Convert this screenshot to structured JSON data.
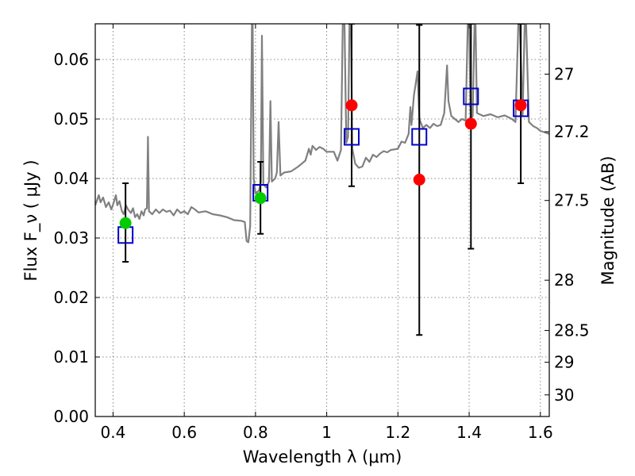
{
  "chart_data": {
    "type": "scatter",
    "title": "",
    "xlabel": "Wavelength  λ (μm)",
    "ylabel": "Flux  F_ν  ( μJy )",
    "ylabel_right": "Magnitude (AB)",
    "xlim": [
      0.35,
      1.625
    ],
    "ylim": [
      0.0,
      0.066
    ],
    "grid": true,
    "grid_style": "dotted",
    "legend": "none",
    "x_ticks": [
      0.4,
      0.6,
      0.8,
      1.0,
      1.2,
      1.4,
      1.6
    ],
    "x_tick_labels": [
      "0.4",
      "0.6",
      "0.8",
      "1",
      "1.2",
      "1.4",
      "1.6"
    ],
    "y_ticks": [
      0.0,
      0.01,
      0.02,
      0.03,
      0.04,
      0.05,
      0.06
    ],
    "y_tick_labels": [
      "0.00",
      "0.01",
      "0.02",
      "0.03",
      "0.04",
      "0.05",
      "0.06"
    ],
    "right_ticks": [
      {
        "mag": 27.0,
        "label": "27"
      },
      {
        "mag": 27.2,
        "label": "27.2"
      },
      {
        "mag": 27.5,
        "label": "27.5"
      },
      {
        "mag": 28.0,
        "label": "28"
      },
      {
        "mag": 28.5,
        "label": "28.5"
      },
      {
        "mag": 29.0,
        "label": "29"
      },
      {
        "mag": 30.0,
        "label": "30"
      }
    ],
    "colors": {
      "spectrum": "#808080",
      "model_squares": "#0000cc",
      "observed_optical": "#00cc00",
      "observed_ir": "#ff0000",
      "error_bars": "#000000",
      "grid": "#888888"
    },
    "series": [
      {
        "kind": "line",
        "points": [
          [
            0.35,
            0.0355
          ],
          [
            0.36,
            0.0372
          ],
          [
            0.365,
            0.036
          ],
          [
            0.372,
            0.0368
          ],
          [
            0.38,
            0.0352
          ],
          [
            0.388,
            0.036
          ],
          [
            0.395,
            0.0348
          ],
          [
            0.4,
            0.0356
          ],
          [
            0.408,
            0.0372
          ],
          [
            0.412,
            0.0355
          ],
          [
            0.418,
            0.0362
          ],
          [
            0.425,
            0.0345
          ],
          [
            0.43,
            0.034
          ],
          [
            0.436,
            0.0355
          ],
          [
            0.442,
            0.0348
          ],
          [
            0.45,
            0.0342
          ],
          [
            0.456,
            0.035
          ],
          [
            0.462,
            0.0335
          ],
          [
            0.468,
            0.034
          ],
          [
            0.474,
            0.0332
          ],
          [
            0.48,
            0.0345
          ],
          [
            0.486,
            0.0338
          ],
          [
            0.49,
            0.0348
          ],
          [
            0.495,
            0.035
          ],
          [
            0.498,
            0.047
          ],
          [
            0.501,
            0.0345
          ],
          [
            0.51,
            0.034
          ],
          [
            0.52,
            0.0348
          ],
          [
            0.53,
            0.0342
          ],
          [
            0.54,
            0.0348
          ],
          [
            0.55,
            0.0344
          ],
          [
            0.56,
            0.0346
          ],
          [
            0.57,
            0.0338
          ],
          [
            0.58,
            0.0348
          ],
          [
            0.59,
            0.0342
          ],
          [
            0.6,
            0.0345
          ],
          [
            0.61,
            0.034
          ],
          [
            0.62,
            0.0352
          ],
          [
            0.63,
            0.0348
          ],
          [
            0.64,
            0.0343
          ],
          [
            0.66,
            0.0345
          ],
          [
            0.68,
            0.034
          ],
          [
            0.7,
            0.0338
          ],
          [
            0.72,
            0.0335
          ],
          [
            0.74,
            0.033
          ],
          [
            0.76,
            0.0329
          ],
          [
            0.77,
            0.0327
          ],
          [
            0.775,
            0.0295
          ],
          [
            0.78,
            0.0293
          ],
          [
            0.785,
            0.032
          ],
          [
            0.79,
            0.066
          ],
          [
            0.792,
            0.066
          ],
          [
            0.795,
            0.04
          ],
          [
            0.8,
            0.0375
          ],
          [
            0.81,
            0.038
          ],
          [
            0.815,
            0.0395
          ],
          [
            0.818,
            0.064
          ],
          [
            0.822,
            0.039
          ],
          [
            0.83,
            0.0385
          ],
          [
            0.838,
            0.0395
          ],
          [
            0.842,
            0.053
          ],
          [
            0.846,
            0.0395
          ],
          [
            0.855,
            0.04
          ],
          [
            0.86,
            0.041
          ],
          [
            0.865,
            0.0495
          ],
          [
            0.87,
            0.0405
          ],
          [
            0.88,
            0.041
          ],
          [
            0.9,
            0.0412
          ],
          [
            0.92,
            0.042
          ],
          [
            0.94,
            0.043
          ],
          [
            0.95,
            0.045
          ],
          [
            0.955,
            0.044
          ],
          [
            0.96,
            0.0455
          ],
          [
            0.97,
            0.0448
          ],
          [
            0.98,
            0.0453
          ],
          [
            0.99,
            0.045
          ],
          [
            1.0,
            0.0445
          ],
          [
            1.02,
            0.0445
          ],
          [
            1.03,
            0.043
          ],
          [
            1.04,
            0.0448
          ],
          [
            1.045,
            0.066
          ],
          [
            1.05,
            0.066
          ],
          [
            1.055,
            0.046
          ],
          [
            1.06,
            0.047
          ],
          [
            1.064,
            0.066
          ],
          [
            1.068,
            0.066
          ],
          [
            1.072,
            0.045
          ],
          [
            1.08,
            0.0425
          ],
          [
            1.09,
            0.0418
          ],
          [
            1.1,
            0.042
          ],
          [
            1.11,
            0.0435
          ],
          [
            1.12,
            0.0428
          ],
          [
            1.13,
            0.044
          ],
          [
            1.14,
            0.0436
          ],
          [
            1.15,
            0.0442
          ],
          [
            1.16,
            0.0446
          ],
          [
            1.17,
            0.0444
          ],
          [
            1.18,
            0.0448
          ],
          [
            1.19,
            0.0449
          ],
          [
            1.2,
            0.045
          ],
          [
            1.21,
            0.0462
          ],
          [
            1.22,
            0.046
          ],
          [
            1.23,
            0.0475
          ],
          [
            1.235,
            0.052
          ],
          [
            1.238,
            0.049
          ],
          [
            1.245,
            0.054
          ],
          [
            1.25,
            0.056
          ],
          [
            1.255,
            0.058
          ],
          [
            1.26,
            0.05
          ],
          [
            1.27,
            0.0485
          ],
          [
            1.28,
            0.049
          ],
          [
            1.29,
            0.0485
          ],
          [
            1.3,
            0.0492
          ],
          [
            1.31,
            0.0488
          ],
          [
            1.32,
            0.049
          ],
          [
            1.33,
            0.051
          ],
          [
            1.338,
            0.059
          ],
          [
            1.342,
            0.053
          ],
          [
            1.35,
            0.0505
          ],
          [
            1.36,
            0.05
          ],
          [
            1.37,
            0.0495
          ],
          [
            1.38,
            0.05
          ],
          [
            1.39,
            0.0497
          ],
          [
            1.396,
            0.066
          ],
          [
            1.4,
            0.066
          ],
          [
            1.404,
            0.05
          ],
          [
            1.41,
            0.0505
          ],
          [
            1.415,
            0.066
          ],
          [
            1.418,
            0.066
          ],
          [
            1.422,
            0.051
          ],
          [
            1.44,
            0.0505
          ],
          [
            1.46,
            0.0508
          ],
          [
            1.48,
            0.0503
          ],
          [
            1.5,
            0.0506
          ],
          [
            1.52,
            0.05
          ],
          [
            1.53,
            0.0495
          ],
          [
            1.538,
            0.066
          ],
          [
            1.542,
            0.066
          ],
          [
            1.55,
            0.0505
          ],
          [
            1.556,
            0.066
          ],
          [
            1.56,
            0.066
          ],
          [
            1.568,
            0.0495
          ],
          [
            1.58,
            0.0488
          ],
          [
            1.59,
            0.0485
          ],
          [
            1.6,
            0.048
          ],
          [
            1.61,
            0.0478
          ],
          [
            1.625,
            0.0475
          ]
        ]
      },
      {
        "kind": "squares",
        "points": [
          {
            "x": 0.435,
            "y": 0.0305
          },
          {
            "x": 0.814,
            "y": 0.0376
          },
          {
            "x": 1.07,
            "y": 0.047
          },
          {
            "x": 1.26,
            "y": 0.047
          },
          {
            "x": 1.405,
            "y": 0.0538
          },
          {
            "x": 1.545,
            "y": 0.0518
          }
        ]
      },
      {
        "kind": "circles",
        "points": [
          {
            "x": 0.435,
            "y": 0.0325,
            "err_low": 0.026,
            "err_high": 0.0392,
            "color_key": "observed_optical"
          },
          {
            "x": 0.814,
            "y": 0.0367,
            "err_low": 0.0307,
            "err_high": 0.0428,
            "color_key": "observed_optical"
          },
          {
            "x": 1.07,
            "y": 0.0523,
            "err_low": 0.0387,
            "err_high": 0.066,
            "color_key": "observed_ir"
          },
          {
            "x": 1.26,
            "y": 0.0398,
            "err_low": 0.0137,
            "err_high": 0.0658,
            "color_key": "observed_ir"
          },
          {
            "x": 1.405,
            "y": 0.0492,
            "err_low": 0.0282,
            "err_high": 0.066,
            "color_key": "observed_ir"
          },
          {
            "x": 1.545,
            "y": 0.0523,
            "err_low": 0.0392,
            "err_high": 0.066,
            "color_key": "observed_ir"
          }
        ]
      }
    ]
  }
}
